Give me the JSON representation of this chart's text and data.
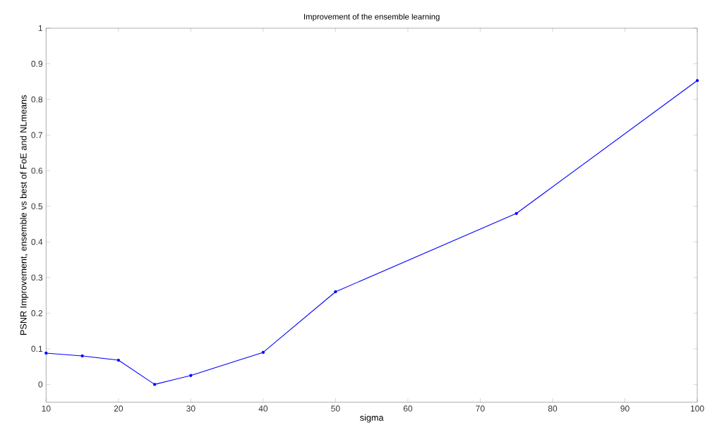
{
  "chart_data": {
    "type": "line",
    "title": "Improvement of the ensemble learning",
    "xlabel": "sigma",
    "ylabel": "PSNR Improvement, ensemble vs best of FoE and NLmeans",
    "x": [
      10,
      15,
      20,
      25,
      30,
      40,
      50,
      75,
      100
    ],
    "series": [
      {
        "color": "#0000ff",
        "values": [
          0.088,
          0.08,
          0.068,
          0.0,
          0.025,
          0.09,
          0.26,
          0.48,
          0.853
        ]
      }
    ],
    "xlim": [
      10,
      100
    ],
    "ylim": [
      -0.05,
      1
    ],
    "xticks": [
      10,
      20,
      30,
      40,
      50,
      60,
      70,
      80,
      90,
      100
    ],
    "yticks": [
      0,
      0.1,
      0.2,
      0.3,
      0.4,
      0.5,
      0.6,
      0.7,
      0.8,
      0.9,
      1
    ],
    "grid": false,
    "marker": "circle",
    "line_style": "solid"
  }
}
